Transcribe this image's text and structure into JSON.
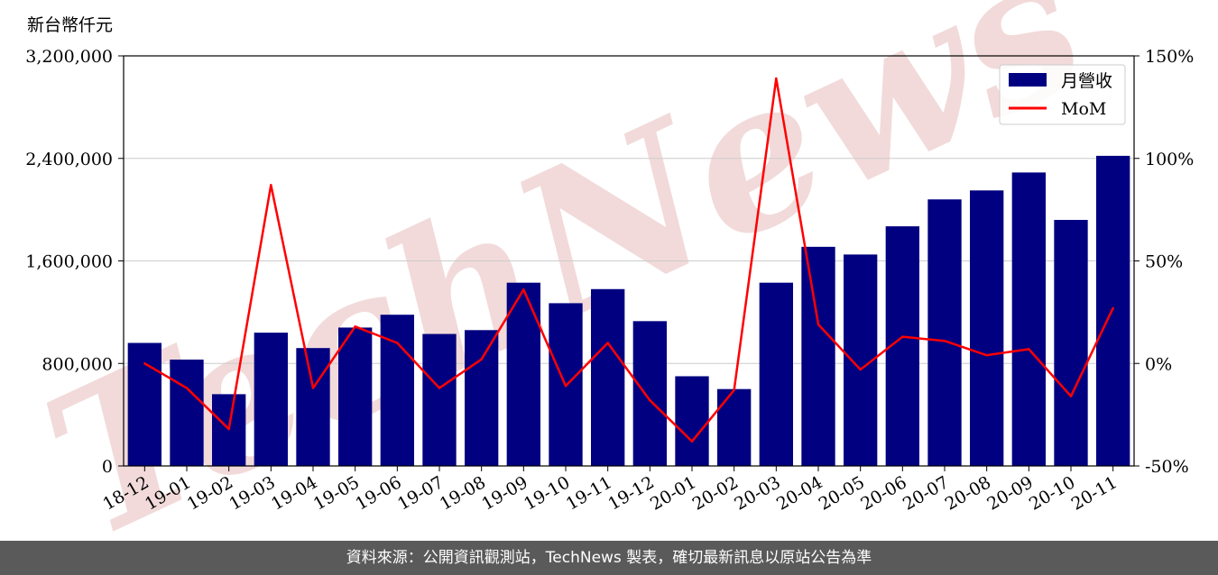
{
  "colors": {
    "bar": "#000080",
    "line": "#ff0000",
    "grid": "#cccccc",
    "watermark": "#f2dada",
    "footer_bg": "#5a5a5a"
  },
  "watermark": "TechNews",
  "footer_text": "資料來源：公開資訊觀測站，TechNews 製表，確切最新訊息以原站公告為準",
  "chart_data": {
    "type": "bar",
    "ylabel": "新台幣仟元",
    "categories": [
      "18-12",
      "19-01",
      "19-02",
      "19-03",
      "19-04",
      "19-05",
      "19-06",
      "19-07",
      "19-08",
      "19-09",
      "19-10",
      "19-11",
      "19-12",
      "20-01",
      "20-02",
      "20-03",
      "20-04",
      "20-05",
      "20-06",
      "20-07",
      "20-08",
      "20-09",
      "20-10",
      "20-11"
    ],
    "ylim": [
      0,
      3200000
    ],
    "yticks": [
      0,
      800000,
      1600000,
      2400000,
      3200000
    ],
    "ytick_labels": [
      "0",
      "800,000",
      "1,600,000",
      "2,400,000",
      "3,200,000"
    ],
    "y2lim": [
      -50,
      150
    ],
    "y2ticks": [
      -50,
      0,
      50,
      100,
      150
    ],
    "y2tick_labels": [
      "-50%",
      "0%",
      "50%",
      "100%",
      "150%"
    ],
    "grid": true,
    "legend_position": "top-right",
    "series": [
      {
        "name": "月營收",
        "type": "bar",
        "axis": "left",
        "values": [
          960000,
          830000,
          560000,
          1040000,
          920000,
          1080000,
          1180000,
          1030000,
          1060000,
          1430000,
          1270000,
          1380000,
          1130000,
          700000,
          600000,
          1430000,
          1710000,
          1650000,
          1870000,
          2080000,
          2150000,
          2290000,
          1920000,
          2420000
        ]
      },
      {
        "name": "MoM",
        "type": "line",
        "axis": "right",
        "values": [
          0,
          -12,
          -32,
          87,
          -12,
          18,
          10,
          -12,
          2,
          36,
          -11,
          10,
          -18,
          -38,
          -13,
          139,
          19,
          -3,
          13,
          11,
          4,
          7,
          -16,
          27
        ]
      }
    ]
  }
}
